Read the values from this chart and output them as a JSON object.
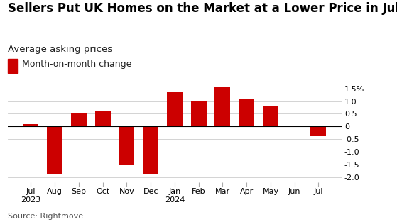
{
  "title": "Sellers Put UK Homes on the Market at a Lower Price in July",
  "subtitle": "Average asking prices",
  "legend_label": "Month-on-month change",
  "source": "Source: Rightmove",
  "categories": [
    "Jul\n2023",
    "Aug",
    "Sep",
    "Oct",
    "Nov",
    "Dec",
    "Jan\n2024",
    "Feb",
    "Mar",
    "Apr",
    "May",
    "Jun",
    "Jul"
  ],
  "values": [
    0.1,
    -1.9,
    0.5,
    0.6,
    -1.5,
    -1.9,
    1.35,
    1.0,
    1.55,
    1.1,
    0.8,
    0.0,
    -0.4
  ],
  "bar_color": "#cc0000",
  "background_color": "#ffffff",
  "ylim": [
    -2.2,
    1.75
  ],
  "yticks": [
    -2.0,
    -1.5,
    -1.0,
    -0.5,
    0,
    0.5,
    1.0,
    1.5
  ],
  "ytick_labels": [
    "-2.0",
    "-1.5",
    "-1.0",
    "-0.5",
    "0",
    "0.5",
    "1.0",
    "1.5%"
  ],
  "title_fontsize": 12,
  "subtitle_fontsize": 9.5,
  "legend_fontsize": 9,
  "source_fontsize": 8,
  "tick_fontsize": 8
}
